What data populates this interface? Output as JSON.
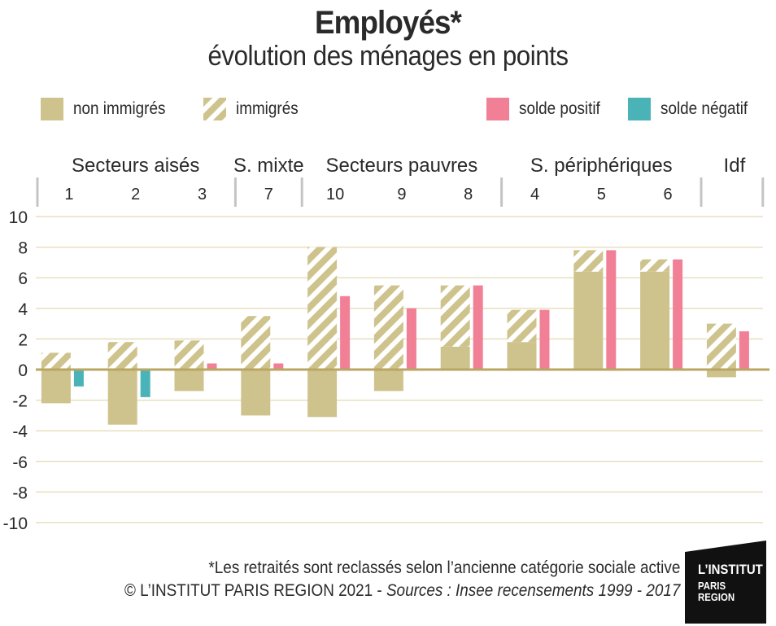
{
  "title": "Employés*",
  "subtitle": "évolution des ménages en points",
  "legend": {
    "non_immigres": "non immigrés",
    "immigres": "immigrés",
    "solde_positif": "solde positif",
    "solde_negatif": "solde négatif"
  },
  "colors": {
    "non_immigres": "#cfc38d",
    "immigres_hatch": "#cfc38d",
    "solde_positif": "#f18096",
    "solde_negatif": "#4ab3b8",
    "zero_line": "#b8a662",
    "grid": "#e7dfbf"
  },
  "chart_data": {
    "type": "bar",
    "groups": [
      {
        "label": "Secteurs aisés",
        "categories": [
          "1",
          "2",
          "3"
        ]
      },
      {
        "label": "S. mixte",
        "categories": [
          "7"
        ]
      },
      {
        "label": "Secteurs pauvres",
        "categories": [
          "10",
          "9",
          "8"
        ]
      },
      {
        "label": "S. périphériques",
        "categories": [
          "4",
          "5",
          "6"
        ]
      },
      {
        "label": "Idf",
        "categories": [
          ""
        ]
      }
    ],
    "categories": [
      "1",
      "2",
      "3",
      "7",
      "10",
      "9",
      "8",
      "4",
      "5",
      "6",
      ""
    ],
    "series": [
      {
        "name": "non immigrés",
        "values": [
          -2.2,
          -3.6,
          -1.4,
          -3.0,
          -3.1,
          -1.4,
          1.5,
          1.8,
          6.4,
          6.4,
          -0.5
        ]
      },
      {
        "name": "immigrés",
        "values": [
          1.1,
          1.8,
          1.9,
          3.5,
          8.0,
          5.5,
          4.0,
          2.1,
          1.4,
          0.8,
          3.0
        ]
      },
      {
        "name": "solde",
        "values": [
          -1.1,
          -1.8,
          0.4,
          0.4,
          4.8,
          4.0,
          5.5,
          3.9,
          7.8,
          7.2,
          2.5
        ]
      }
    ],
    "ylim": [
      -10,
      10
    ],
    "yticks": [
      "10",
      "8",
      "6",
      "4",
      "2",
      "0",
      "-2",
      "-4",
      "-6",
      "-8",
      "-10"
    ],
    "grid": true,
    "legend_position": "top"
  },
  "footer": {
    "note": "*Les retraités sont reclassés selon l’ancienne catégorie sociale active",
    "copyright": "© L’INSTITUT PARIS REGION 2021 - ",
    "sources": "Sources : Insee recensements 1999 - 2017"
  },
  "logo": {
    "line1": "L’INSTITUT",
    "line2": "PARIS",
    "line3": "REGION"
  }
}
